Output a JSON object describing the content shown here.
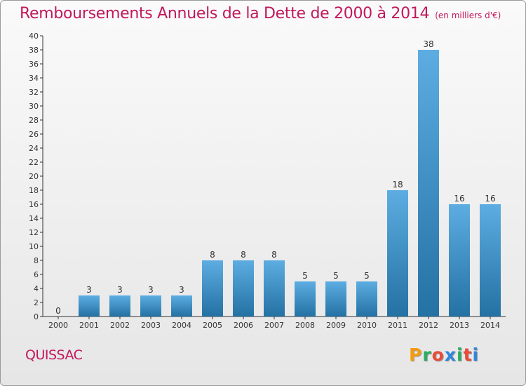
{
  "header": {
    "title": "Remboursements Annuels de la Dette de 2000 à 2014",
    "subtitle": "(en milliers d'€)"
  },
  "footer": {
    "commune": "QUISSAC",
    "logo_letters": [
      "P",
      "r",
      "o",
      "x",
      "i",
      "t",
      "i"
    ],
    "logo_colors": [
      "#f39c12",
      "#27ae60",
      "#e74c3c",
      "#2e86de",
      "#27ae60",
      "#e74c3c",
      "#2e86de"
    ]
  },
  "colors": {
    "bar_top": "#5dade2",
    "bar_bottom": "#2471a3",
    "title": "#c2185b",
    "axis": "#333333",
    "grid": "#d8d8d8"
  },
  "chart_data": {
    "type": "bar",
    "title": "Remboursements Annuels de la Dette de 2000 à 2014",
    "subtitle": "(en milliers d'€)",
    "categories": [
      "2000",
      "2001",
      "2002",
      "2003",
      "2004",
      "2005",
      "2006",
      "2007",
      "2008",
      "2009",
      "2010",
      "2011",
      "2012",
      "2013",
      "2014"
    ],
    "values": [
      0,
      3,
      3,
      3,
      3,
      8,
      8,
      8,
      5,
      5,
      5,
      18,
      38,
      16,
      16
    ],
    "ylim": [
      0,
      40
    ],
    "ytick_step": 2,
    "grid": false,
    "xlabel": "",
    "ylabel": ""
  }
}
